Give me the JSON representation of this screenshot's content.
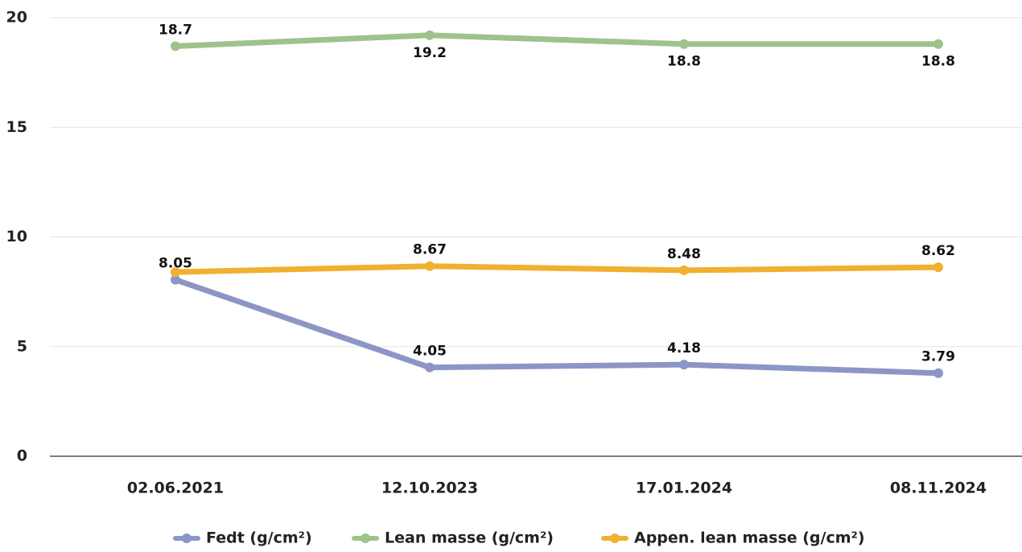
{
  "chart_data": {
    "type": "line",
    "categories": [
      "02.06.2021",
      "12.10.2023",
      "17.01.2024",
      "08.11.2024"
    ],
    "series": [
      {
        "name": "Fedt (g/cm²)",
        "color": "#8c96c6",
        "values": [
          8.05,
          4.05,
          4.18,
          3.79
        ]
      },
      {
        "name": "Lean masse (g/cm²)",
        "color": "#9dc38a",
        "values": [
          18.7,
          19.2,
          18.8,
          18.8
        ]
      },
      {
        "name": "Appen. lean masse (g/cm²)",
        "color": "#f0b030",
        "values": [
          8.4,
          8.67,
          8.48,
          8.62
        ],
        "value_labels": [
          null,
          "8.67",
          "8.48",
          "8.62"
        ]
      }
    ],
    "ylim": [
      0,
      20
    ],
    "yticks": [
      0,
      5,
      10,
      15,
      20
    ],
    "grid": true,
    "legend": "bottom"
  }
}
